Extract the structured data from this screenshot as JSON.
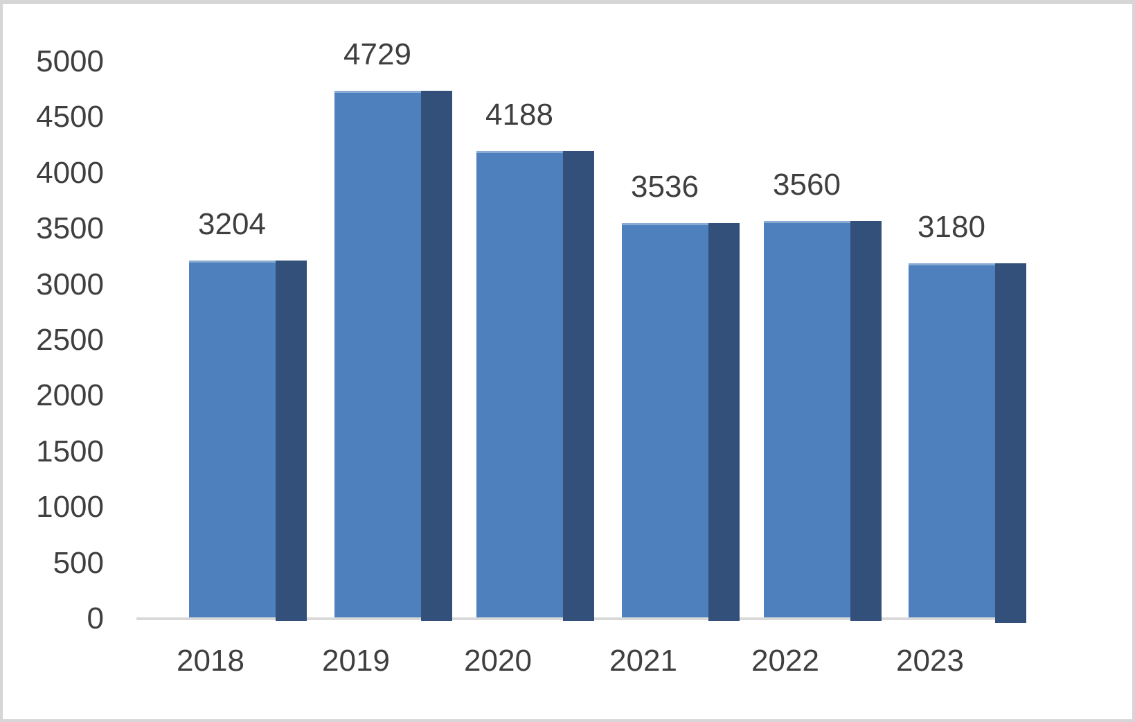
{
  "chart_data": {
    "type": "bar",
    "title": "",
    "xlabel": "",
    "ylabel": "",
    "categories": [
      "2018",
      "2019",
      "2020",
      "2021",
      "2022",
      "2023"
    ],
    "values": [
      3204,
      4729,
      4188,
      3536,
      3560,
      3180
    ],
    "data_labels": [
      "3204",
      "4729",
      "4188",
      "3536",
      "3560",
      "3180"
    ],
    "ylim": [
      0,
      5000
    ],
    "ytick_step": 500,
    "yticks": [
      0,
      500,
      1000,
      1500,
      2000,
      2500,
      3000,
      3500,
      4000,
      4500,
      5000
    ],
    "grid": false,
    "legend_position": "none",
    "bar_style": "3d-right-shadow",
    "colors": {
      "bar_fill": "#4E80BE",
      "bar_shadow": "#32507A",
      "axis_line": "#D9D9D9",
      "label_text": "#3F3F3F",
      "frame_border": "#D6D6D6",
      "background": "#FFFFFF"
    }
  }
}
